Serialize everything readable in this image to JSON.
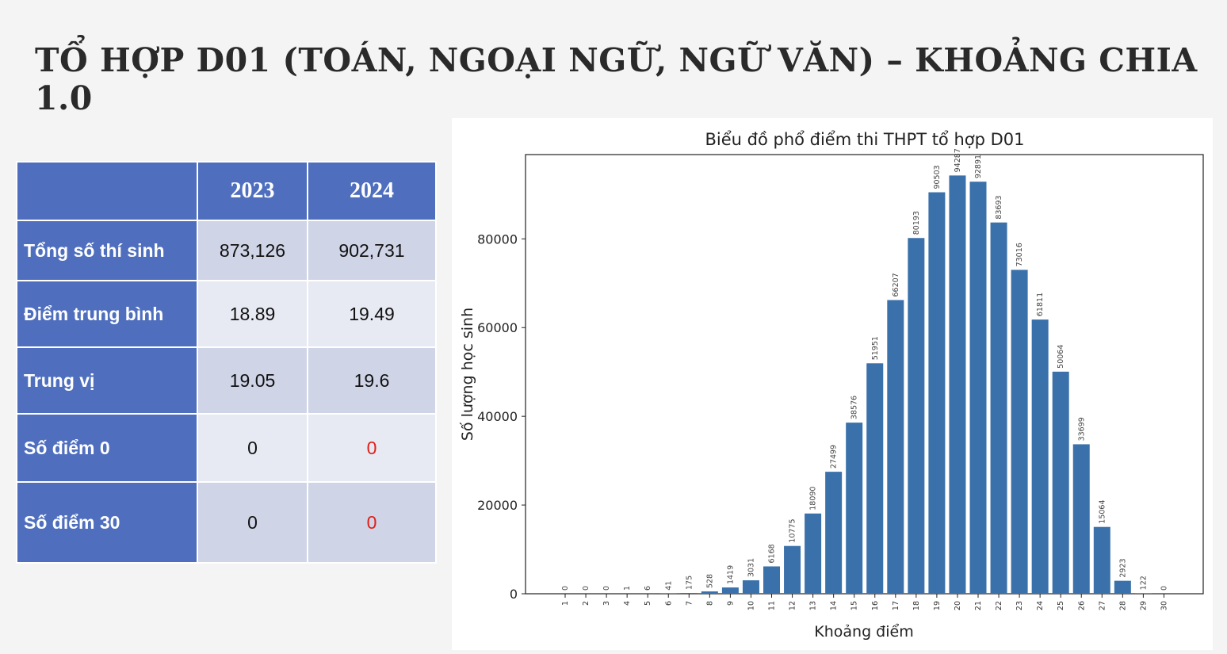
{
  "slide": {
    "title": "TỔ HỢP D01 (TOÁN, NGOẠI NGỮ, NGỮ VĂN) – KHOẢNG CHIA 1.0"
  },
  "table": {
    "headers": [
      "",
      "2023",
      "2024"
    ],
    "rows": [
      {
        "label": "Tổng số thí sinh",
        "v2023": "873,126",
        "v2024": "902,731"
      },
      {
        "label": "Điểm trung bình",
        "v2023": "18.89",
        "v2024": "19.49"
      },
      {
        "label": "Trung vị",
        "v2023": "19.05",
        "v2024": "19.6"
      },
      {
        "label": "Số điểm 0",
        "v2023": "0",
        "v2024": "0"
      },
      {
        "label": "Số điểm 30",
        "v2023": "0",
        "v2024": "0"
      }
    ],
    "highlight_color": "#e0201a",
    "header_color": "#4f6fbe"
  },
  "chart_data": {
    "type": "bar",
    "title": "Biểu đồ phổ điểm thi THPT tổ hợp D01",
    "xlabel": "Khoảng điểm",
    "ylabel": "Số lượng học sinh",
    "categories": [
      "1",
      "2",
      "3",
      "4",
      "5",
      "6",
      "7",
      "8",
      "9",
      "10",
      "11",
      "12",
      "13",
      "14",
      "15",
      "16",
      "17",
      "18",
      "19",
      "20",
      "21",
      "22",
      "23",
      "24",
      "25",
      "26",
      "27",
      "28",
      "29",
      "30"
    ],
    "values": [
      0,
      0,
      0,
      1,
      6,
      41,
      175,
      528,
      1419,
      3031,
      6168,
      10775,
      18090,
      27499,
      38576,
      51951,
      66207,
      80193,
      90503,
      94287,
      92891,
      83693,
      73016,
      61811,
      50064,
      33699,
      15064,
      2923,
      122,
      0
    ],
    "value_labels": [
      "0",
      "0",
      "0",
      "1",
      "6",
      "41",
      "175",
      "528",
      "1419",
      "3031",
      "6168",
      "10775",
      "18090",
      "27499",
      "38576",
      "51951",
      "66207",
      "80193",
      "90503",
      "94287",
      "92891",
      "83693",
      "73016",
      "61811",
      "50064",
      "33699",
      "15064",
      "2923",
      "122",
      "0"
    ],
    "yticks": [
      "0",
      "20000",
      "40000",
      "60000",
      "80000"
    ],
    "ylim": [
      0,
      99000
    ],
    "bar_color": "#3a71aa",
    "grid": false
  }
}
